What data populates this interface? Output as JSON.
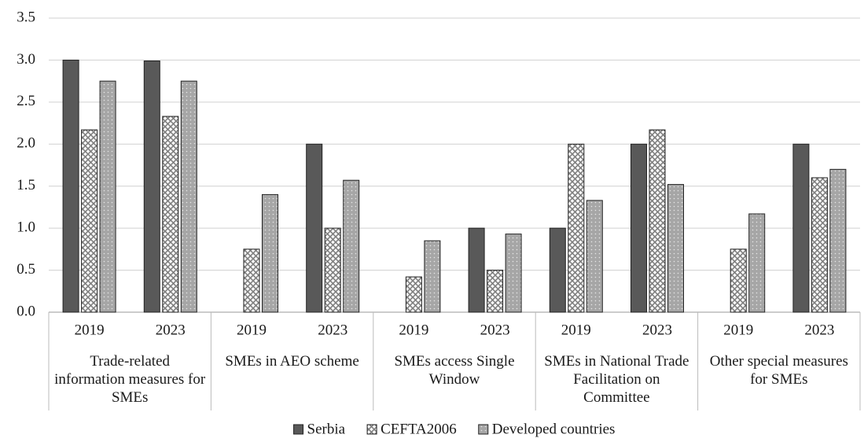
{
  "chart_data": {
    "type": "bar",
    "groups": [
      "Trade-related information measures for SMEs",
      "SMEs in AEO scheme",
      "SMEs access Single Window",
      "SMEs in National Trade Facilitation on Committee",
      "Other special measures for SMEs"
    ],
    "categories": [
      "2019",
      "2023",
      "2019",
      "2023",
      "2019",
      "2023",
      "2019",
      "2023",
      "2019",
      "2023"
    ],
    "series": [
      {
        "name": "Serbia",
        "color": "#595959",
        "pattern": "solid",
        "values": [
          3.0,
          2.99,
          0,
          2.0,
          0,
          1.0,
          1.0,
          2.0,
          0,
          2.0
        ]
      },
      {
        "name": "CEFTA2006",
        "color": "#7f7f7f",
        "pattern": "crosshatch",
        "values": [
          2.17,
          2.33,
          0.75,
          1.0,
          0.42,
          0.5,
          2.0,
          2.17,
          0.75,
          1.6
        ]
      },
      {
        "name": "Developed countries",
        "color": "#a6a6a6",
        "pattern": "dots",
        "values": [
          2.75,
          2.75,
          1.4,
          1.57,
          0.85,
          0.93,
          1.33,
          1.52,
          1.17,
          1.7
        ]
      }
    ],
    "ylim": [
      0,
      3.5
    ],
    "yticks": [
      {
        "value": 0,
        "label": "0.0"
      },
      {
        "value": 0.5,
        "label": "0.5"
      },
      {
        "value": 1,
        "label": "1.0"
      },
      {
        "value": 1.5,
        "label": "1.5"
      },
      {
        "value": 2,
        "label": "2.0"
      },
      {
        "value": 2.5,
        "label": "2.5"
      },
      {
        "value": 3,
        "label": "3.0"
      },
      {
        "value": 3.5,
        "label": "3.5"
      }
    ],
    "grid": true,
    "legend": "bottom"
  }
}
